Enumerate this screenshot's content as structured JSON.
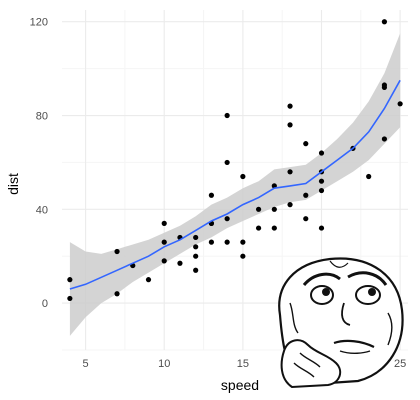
{
  "chart_data": {
    "type": "scatter",
    "xlabel": "speed",
    "ylabel": "dist",
    "xlim": [
      3.5,
      25.5
    ],
    "ylim": [
      -20,
      125
    ],
    "x_ticks": [
      5,
      10,
      15,
      20,
      25
    ],
    "y_ticks": [
      0,
      40,
      80,
      120
    ],
    "x_tick_labels": [
      "5",
      "10",
      "15",
      "20",
      "25"
    ],
    "y_tick_labels": [
      "0",
      "40",
      "80",
      "120"
    ],
    "grid": true,
    "points": [
      {
        "x": 4,
        "y": 2
      },
      {
        "x": 4,
        "y": 10
      },
      {
        "x": 7,
        "y": 4
      },
      {
        "x": 7,
        "y": 22
      },
      {
        "x": 8,
        "y": 16
      },
      {
        "x": 9,
        "y": 10
      },
      {
        "x": 10,
        "y": 18
      },
      {
        "x": 10,
        "y": 26
      },
      {
        "x": 10,
        "y": 34
      },
      {
        "x": 11,
        "y": 17
      },
      {
        "x": 11,
        "y": 28
      },
      {
        "x": 12,
        "y": 14
      },
      {
        "x": 12,
        "y": 20
      },
      {
        "x": 12,
        "y": 24
      },
      {
        "x": 12,
        "y": 28
      },
      {
        "x": 13,
        "y": 26
      },
      {
        "x": 13,
        "y": 34
      },
      {
        "x": 13,
        "y": 34
      },
      {
        "x": 13,
        "y": 46
      },
      {
        "x": 14,
        "y": 26
      },
      {
        "x": 14,
        "y": 36
      },
      {
        "x": 14,
        "y": 60
      },
      {
        "x": 14,
        "y": 80
      },
      {
        "x": 15,
        "y": 20
      },
      {
        "x": 15,
        "y": 26
      },
      {
        "x": 15,
        "y": 54
      },
      {
        "x": 16,
        "y": 32
      },
      {
        "x": 16,
        "y": 40
      },
      {
        "x": 17,
        "y": 32
      },
      {
        "x": 17,
        "y": 40
      },
      {
        "x": 17,
        "y": 50
      },
      {
        "x": 18,
        "y": 42
      },
      {
        "x": 18,
        "y": 56
      },
      {
        "x": 18,
        "y": 76
      },
      {
        "x": 18,
        "y": 84
      },
      {
        "x": 19,
        "y": 36
      },
      {
        "x": 19,
        "y": 46
      },
      {
        "x": 19,
        "y": 68
      },
      {
        "x": 20,
        "y": 32
      },
      {
        "x": 20,
        "y": 48
      },
      {
        "x": 20,
        "y": 52
      },
      {
        "x": 20,
        "y": 56
      },
      {
        "x": 20,
        "y": 64
      },
      {
        "x": 22,
        "y": 66
      },
      {
        "x": 23,
        "y": 54
      },
      {
        "x": 24,
        "y": 70
      },
      {
        "x": 24,
        "y": 92
      },
      {
        "x": 24,
        "y": 93
      },
      {
        "x": 24,
        "y": 120
      },
      {
        "x": 25,
        "y": 85
      }
    ],
    "smooth": {
      "method": "loess",
      "x": [
        4,
        5,
        6,
        7,
        8,
        9,
        10,
        11,
        12,
        13,
        14,
        15,
        16,
        17,
        18,
        19,
        20,
        21,
        22,
        23,
        24,
        25
      ],
      "y": [
        6,
        8,
        11,
        14,
        17,
        20,
        24,
        27,
        31,
        35,
        38,
        42,
        45,
        49,
        50,
        51,
        56,
        61,
        66,
        73,
        83,
        95
      ],
      "lower": [
        -14,
        -6,
        0,
        4,
        9,
        13,
        17,
        21,
        25,
        28,
        32,
        35,
        38,
        41,
        43,
        44,
        48,
        52,
        56,
        61,
        68,
        75
      ],
      "upper": [
        26,
        22,
        21,
        23,
        25,
        27,
        30,
        33,
        37,
        42,
        45,
        49,
        52,
        57,
        58,
        59,
        64,
        70,
        77,
        86,
        98,
        115
      ]
    },
    "colors": {
      "line": "#3366ff",
      "band": "#cccccc",
      "points": "#000000",
      "grid_major": "#ebebeb",
      "grid_minor": "#f5f5f5"
    }
  },
  "overlay": {
    "icon": "thinking-face-meme-icon"
  }
}
